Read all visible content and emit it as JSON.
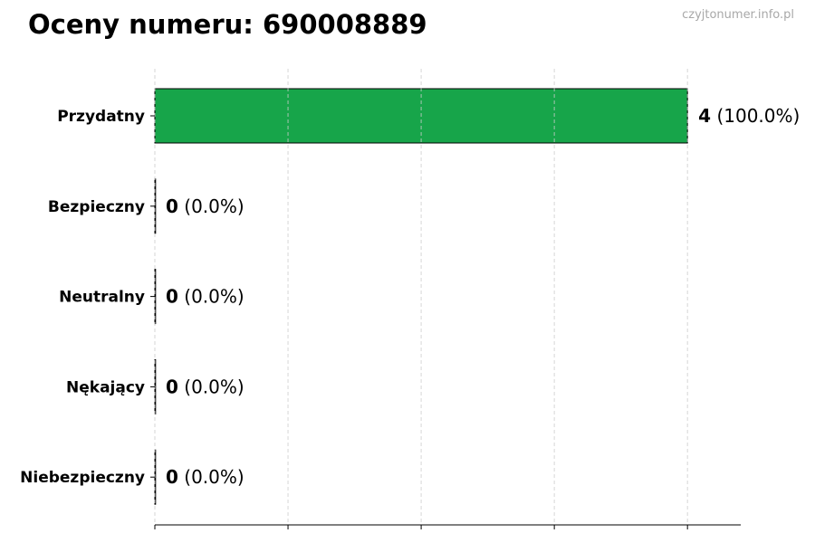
{
  "title": "Oceny numeru: 690008889",
  "watermark": "czyjtonumer.info.pl",
  "chart_data": {
    "type": "bar",
    "orientation": "horizontal",
    "title": "Oceny numeru: 690008889",
    "categories": [
      "Przydatny",
      "Bezpieczny",
      "Neutralny",
      "Nękający",
      "Niebezpieczny"
    ],
    "values": [
      4,
      0,
      0,
      0,
      0
    ],
    "labels": [
      "(100.0%)",
      "(0.0%)",
      "(0.0%)",
      "(0.0%)",
      "(0.0%)"
    ],
    "xlim": [
      0,
      4.4
    ],
    "xticks": [
      0,
      1,
      2,
      3,
      4
    ],
    "xtick_labels_visible": false,
    "grid": "x-dashed",
    "bar_color": "#17a54a",
    "edge_color": "#000000",
    "xlabel": "",
    "ylabel": ""
  }
}
